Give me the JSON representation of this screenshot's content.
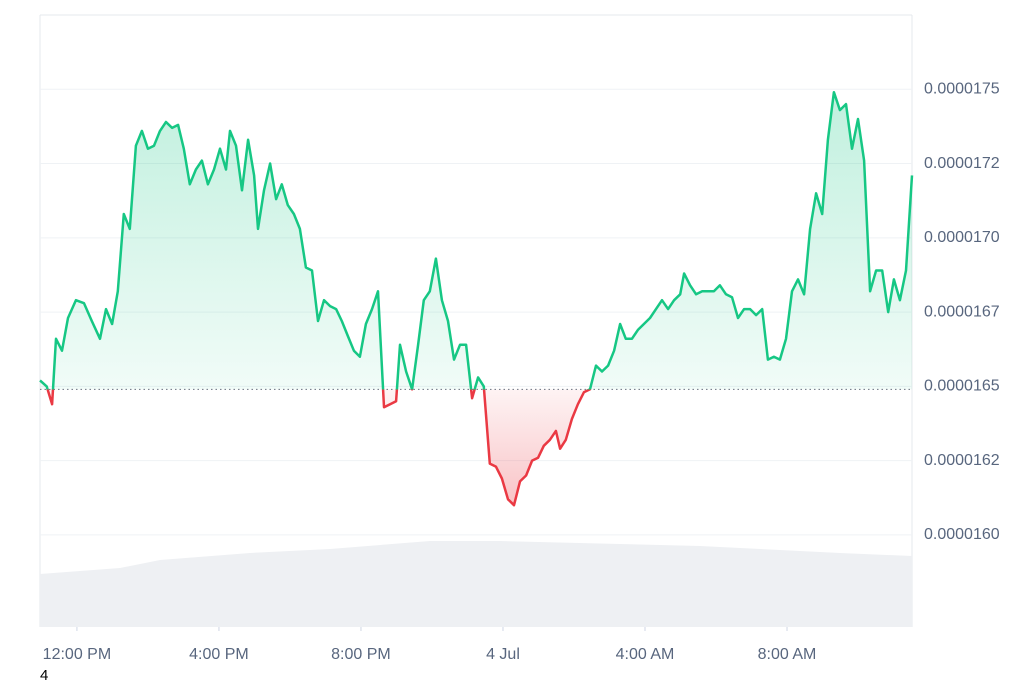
{
  "chart_data": {
    "type": "baseline-line",
    "x": [
      -1.04,
      -0.85,
      -0.7,
      -0.59,
      -0.42,
      -0.25,
      -0.03,
      0.2,
      0.42,
      0.65,
      0.82,
      0.99,
      1.15,
      1.32,
      1.49,
      1.66,
      1.83,
      2.0,
      2.17,
      2.34,
      2.51,
      2.68,
      2.85,
      3.01,
      3.18,
      3.35,
      3.52,
      3.69,
      3.86,
      4.03,
      4.2,
      4.31,
      4.48,
      4.65,
      4.82,
      4.99,
      5.1,
      5.27,
      5.44,
      5.61,
      5.77,
      5.94,
      6.11,
      6.28,
      6.45,
      6.62,
      6.79,
      6.96,
      7.13,
      7.3,
      7.46,
      7.63,
      7.8,
      7.97,
      8.14,
      8.31,
      8.48,
      8.65,
      8.82,
      8.99,
      9.1,
      9.27,
      9.44,
      9.61,
      9.77,
      9.94,
      10.11,
      10.28,
      10.45,
      10.62,
      10.79,
      10.96,
      11.13,
      11.3,
      11.46,
      11.63,
      11.8,
      11.97,
      12.14,
      12.31,
      12.48,
      12.65,
      12.82,
      12.99,
      13.15,
      13.32,
      13.49,
      13.61,
      13.77,
      13.94,
      14.11,
      14.28,
      14.45,
      14.62,
      14.79,
      14.96,
      15.13,
      15.3,
      15.46,
      15.63,
      15.8,
      15.97,
      16.14,
      16.31,
      16.48,
      16.65,
      16.82,
      16.99,
      17.1,
      17.27,
      17.44,
      17.61,
      17.77,
      17.94,
      18.11,
      18.28,
      18.45,
      18.62,
      18.79,
      18.96,
      19.13,
      19.3,
      19.46,
      19.63,
      19.8,
      19.97,
      20.14,
      20.31,
      20.48,
      20.65,
      20.82,
      20.99,
      21.15,
      21.32,
      21.49,
      21.66,
      21.83,
      22.0,
      22.17,
      22.34,
      22.51,
      22.68,
      22.85,
      23.01,
      23.18,
      23.35,
      23.52
    ],
    "values": [
      1.652e-05,
      1.65e-05,
      1.644e-05,
      1.666e-05,
      1.662e-05,
      1.673e-05,
      1.679e-05,
      1.678e-05,
      1.672e-05,
      1.666e-05,
      1.676e-05,
      1.671e-05,
      1.682e-05,
      1.708e-05,
      1.703e-05,
      1.731e-05,
      1.736e-05,
      1.73e-05,
      1.731e-05,
      1.736e-05,
      1.739e-05,
      1.737e-05,
      1.738e-05,
      1.73e-05,
      1.718e-05,
      1.723e-05,
      1.726e-05,
      1.718e-05,
      1.723e-05,
      1.73e-05,
      1.723e-05,
      1.736e-05,
      1.731e-05,
      1.716e-05,
      1.733e-05,
      1.721e-05,
      1.703e-05,
      1.716e-05,
      1.725e-05,
      1.713e-05,
      1.718e-05,
      1.711e-05,
      1.708e-05,
      1.703e-05,
      1.69e-05,
      1.689e-05,
      1.672e-05,
      1.679e-05,
      1.677e-05,
      1.676e-05,
      1.672e-05,
      1.667e-05,
      1.662e-05,
      1.66e-05,
      1.671e-05,
      1.676e-05,
      1.682e-05,
      1.643e-05,
      1.644e-05,
      1.645e-05,
      1.664e-05,
      1.655e-05,
      1.649e-05,
      1.664e-05,
      1.679e-05,
      1.682e-05,
      1.693e-05,
      1.679e-05,
      1.672e-05,
      1.659e-05,
      1.664e-05,
      1.664e-05,
      1.646e-05,
      1.653e-05,
      1.65e-05,
      1.624e-05,
      1.623e-05,
      1.619e-05,
      1.612e-05,
      1.61e-05,
      1.618e-05,
      1.62e-05,
      1.625e-05,
      1.626e-05,
      1.63e-05,
      1.632e-05,
      1.635e-05,
      1.629e-05,
      1.632e-05,
      1.639e-05,
      1.644e-05,
      1.648e-05,
      1.649e-05,
      1.657e-05,
      1.655e-05,
      1.657e-05,
      1.662e-05,
      1.671e-05,
      1.666e-05,
      1.666e-05,
      1.669e-05,
      1.671e-05,
      1.673e-05,
      1.676e-05,
      1.679e-05,
      1.676e-05,
      1.679e-05,
      1.681e-05,
      1.688e-05,
      1.684e-05,
      1.681e-05,
      1.682e-05,
      1.682e-05,
      1.682e-05,
      1.684e-05,
      1.681e-05,
      1.68e-05,
      1.673e-05,
      1.676e-05,
      1.676e-05,
      1.674e-05,
      1.676e-05,
      1.659e-05,
      1.66e-05,
      1.659e-05,
      1.666e-05,
      1.682e-05,
      1.686e-05,
      1.681e-05,
      1.703e-05,
      1.715e-05,
      1.708e-05,
      1.733e-05,
      1.749e-05,
      1.743e-05,
      1.745e-05,
      1.73e-05,
      1.74e-05,
      1.726e-05,
      1.682e-05,
      1.689e-05,
      1.689e-05,
      1.675e-05,
      1.686e-05,
      1.679e-05,
      1.689e-05,
      1.721e-05
    ],
    "baseline": 1.649e-05,
    "up_color": "#16c784",
    "down_color": "#ea3943",
    "xlim": [
      -1.04,
      23.52
    ],
    "xticks": [
      {
        "value": 0,
        "label": "12:00 PM"
      },
      {
        "value": 4,
        "label": "4:00 PM"
      },
      {
        "value": 8,
        "label": "8:00 PM"
      },
      {
        "value": 12,
        "label": "4 Jul"
      },
      {
        "value": 16,
        "label": "4:00 AM"
      },
      {
        "value": 20,
        "label": "8:00 AM"
      }
    ],
    "ylim": [
      1.569e-05,
      1.775e-05
    ],
    "yticks": [
      1.75e-05,
      {
        "value": 1.725e-05,
        "label": "0.0000172"
      },
      {
        "value": 1.7e-05,
        "label": "0.0000170"
      },
      {
        "value": 1.675e-05,
        "label": "0.0000167"
      },
      1.65e-05,
      {
        "value": 1.625e-05,
        "label": "0.0000162"
      },
      {
        "value": 1.6e-05,
        "label": "0.0000160"
      }
    ],
    "grid": true
  },
  "footer": "4"
}
